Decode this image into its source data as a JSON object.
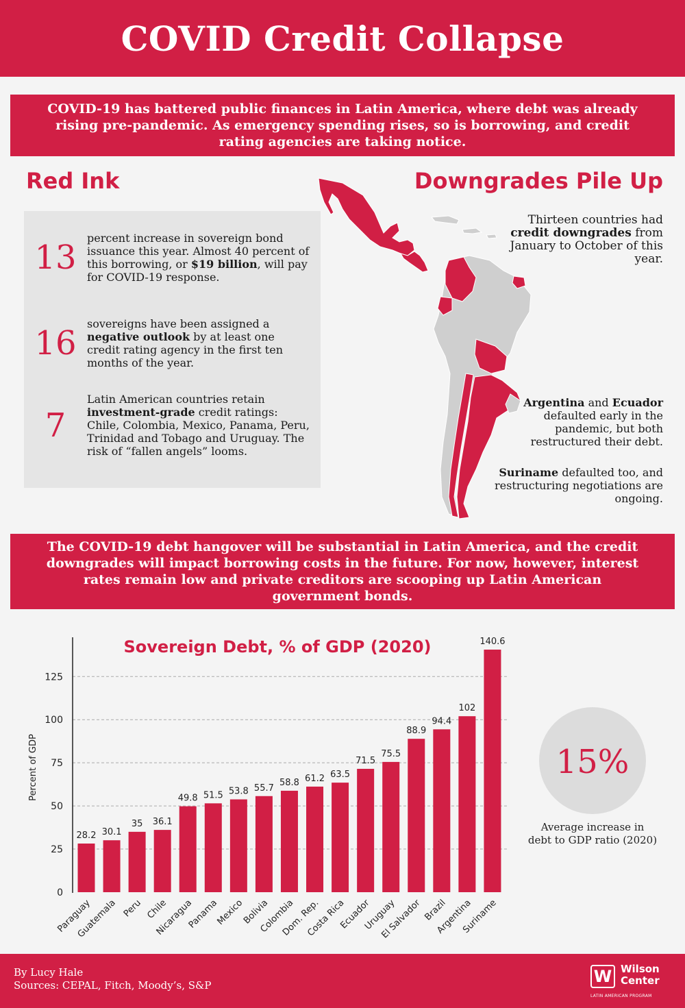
{
  "title": "COVID Credit Collapse",
  "intro": "COVID-19 has battered public finances in Latin America, where debt was already rising pre-pandemic. As emergency spending rises, so is borrowing, and credit rating agencies are taking notice.",
  "red_ink": {
    "title": "Red Ink",
    "stats": [
      {
        "number": "13",
        "text_a": "percent increase in sovereign bond issuance this year. Almost 40 percent of this borrowing, or ",
        "bold": "$19 billion",
        "text_b": ", will pay for COVID-19 response."
      },
      {
        "number": "16",
        "text_a": "sovereigns have been assigned a ",
        "bold": "negative outlook",
        "text_b": " by at least one credit rating agency in the first ten months of the year."
      },
      {
        "number": "7",
        "text_a": "Latin American countries retain ",
        "bold": "investment-grade",
        "text_b": " credit ratings: Chile, Colombia, Mexico, Panama, Peru, Trinidad and Tobago and Uruguay. The risk of “fallen angels” looms."
      }
    ]
  },
  "downgrades": {
    "title": "Downgrades Pile Up",
    "note_a": "Thirteen countries had ",
    "note_bold": "credit downgrades",
    "note_b": " from January to October of this year.",
    "default_bold_1": "Argentina",
    "default_and": " and ",
    "default_bold_2": "Ecuador",
    "default_rest": " defaulted early in the pandemic, but both restructured their debt.",
    "suriname_bold": "Suriname",
    "suriname_rest": " defaulted too, and restructuring negotiations are ongoing."
  },
  "outro": "The COVID-19 debt hangover will be substantial in Latin America, and the credit downgrades will impact borrowing costs in the future. For now, however, interest rates remain low and private creditors are scooping up Latin American government bonds.",
  "chart_data": {
    "type": "bar",
    "title": "Sovereign Debt, % of GDP (2020)",
    "xlabel": "",
    "ylabel": "Percent of GDP",
    "ylim": [
      0,
      140.6
    ],
    "yticks": [
      0,
      25,
      50,
      75,
      100,
      125
    ],
    "grid": true,
    "categories": [
      "Paraguay",
      "Guatemala",
      "Peru",
      "Chile",
      "Nicaragua",
      "Panama",
      "Mexico",
      "Bolivia",
      "Colombia",
      "Dom. Rep.",
      "Costa Rica",
      "Ecuador",
      "Uruguay",
      "El Salvador",
      "Brazil",
      "Argentina",
      "Suriname"
    ],
    "values": [
      28.2,
      30.1,
      35,
      36.1,
      49.8,
      51.5,
      53.8,
      55.7,
      58.8,
      61.2,
      63.5,
      71.5,
      75.5,
      88.9,
      94.4,
      102,
      140.6
    ],
    "color": "#d11f45"
  },
  "callout": {
    "value": "15%",
    "label": "Average increase in debt to GDP ratio (2020)"
  },
  "footer": {
    "byline": "By Lucy Hale",
    "sources": "Sources: CEPAL, Fitch, Moody’s, S&P",
    "logo_mark": "W",
    "logo_name": "Wilson Center",
    "logo_sub": "LATIN AMERICAN PROGRAM"
  },
  "colors": {
    "accent": "#d11f45",
    "panel": "#e5e5e5",
    "map_gray": "#cfcfcf"
  }
}
